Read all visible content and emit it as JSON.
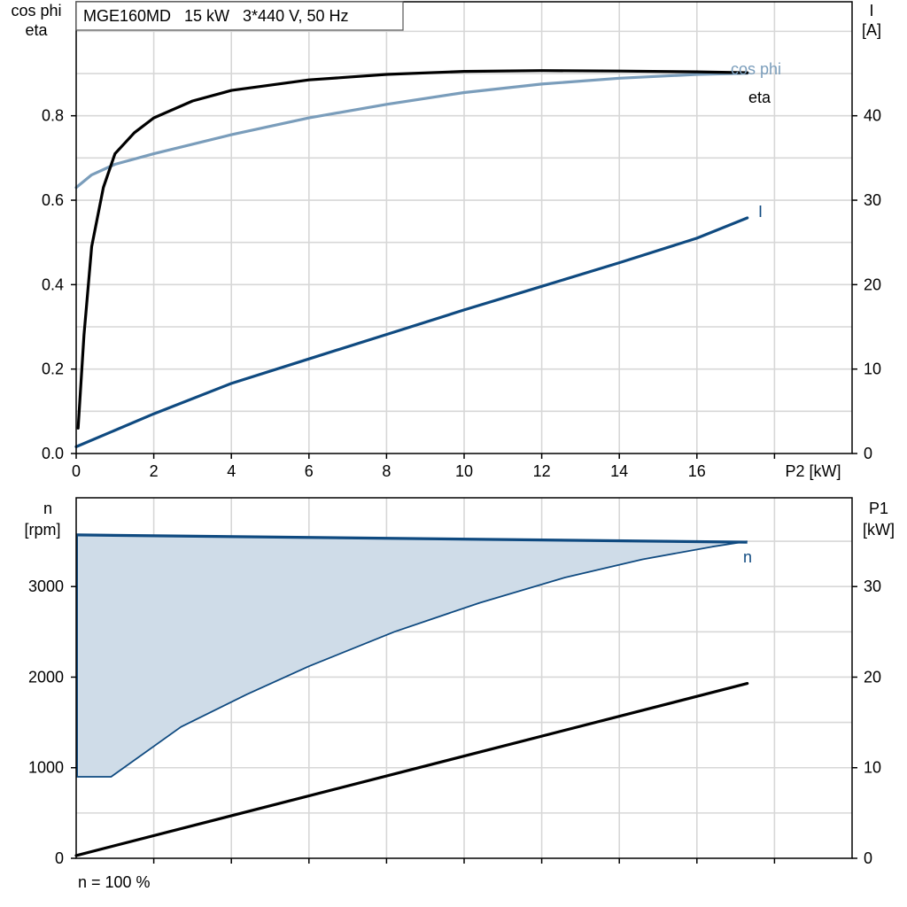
{
  "colors": {
    "eta": "#000000",
    "cos_phi": "#7a9dbb",
    "current": "#0f4a80",
    "speed": "#0f4a80",
    "speed_fill": "#cfdce8",
    "p1": "#000000",
    "grid": "#d7d7d7"
  },
  "chart_data": [
    {
      "type": "line",
      "title": "MGE160MD   15 kW   3*440 V, 50 Hz",
      "xlabel": "P2 [kW]",
      "xlim": [
        0,
        20
      ],
      "x_ticks": [
        0,
        2,
        4,
        6,
        8,
        10,
        12,
        14,
        16
      ],
      "ylabel_left": [
        "cos phi",
        "eta"
      ],
      "ylim_left": [
        0,
        1.07
      ],
      "y_ticks_left": [
        "0.0",
        "0.2",
        "0.4",
        "0.6",
        "0.8"
      ],
      "y_tick_values_left": [
        0,
        0.2,
        0.4,
        0.6,
        0.8
      ],
      "ylabel_right": [
        "I",
        "[A]"
      ],
      "ylim_right": [
        0,
        53.5
      ],
      "y_ticks_right": [
        "0",
        "10",
        "20",
        "30",
        "40"
      ],
      "y_tick_values_right": [
        0,
        10,
        20,
        30,
        40
      ],
      "grid": true,
      "series": [
        {
          "name": "eta",
          "axis": "left",
          "label": "eta",
          "x": [
            0.05,
            0.2,
            0.4,
            0.7,
            1.0,
            1.5,
            2.0,
            3.0,
            4.0,
            6.0,
            8.0,
            10.0,
            12.0,
            14.0,
            16.0,
            17.3
          ],
          "y": [
            0.06,
            0.28,
            0.49,
            0.63,
            0.71,
            0.76,
            0.795,
            0.835,
            0.86,
            0.885,
            0.898,
            0.905,
            0.907,
            0.906,
            0.904,
            0.902
          ]
        },
        {
          "name": "cos phi",
          "axis": "left",
          "label": "cos phi",
          "x": [
            0,
            0.4,
            1.0,
            2.0,
            4.0,
            6.0,
            8.0,
            10.0,
            12.0,
            14.0,
            16.0,
            17.3
          ],
          "y": [
            0.63,
            0.66,
            0.685,
            0.71,
            0.755,
            0.795,
            0.827,
            0.855,
            0.875,
            0.889,
            0.898,
            0.901
          ]
        },
        {
          "name": "I",
          "axis": "right",
          "label": "I",
          "x": [
            0,
            2,
            4,
            6,
            8,
            10,
            12,
            14,
            16,
            17.3
          ],
          "y": [
            0.8,
            4.7,
            8.3,
            11.2,
            14.1,
            17.0,
            19.8,
            22.6,
            25.5,
            27.9
          ]
        }
      ]
    },
    {
      "type": "area",
      "xlim": [
        0,
        20
      ],
      "ylabel_left": [
        "n",
        "[rpm]"
      ],
      "ylim_left": [
        0,
        3980
      ],
      "y_ticks_left": [
        "0",
        "1000",
        "2000",
        "3000"
      ],
      "y_tick_values_left": [
        0,
        1000,
        2000,
        3000
      ],
      "ylabel_right": [
        "P1",
        "[kW]"
      ],
      "ylim_right": [
        0,
        39.8
      ],
      "y_ticks_right": [
        "0",
        "10",
        "20",
        "30"
      ],
      "y_tick_values_right": [
        0,
        10,
        20,
        30
      ],
      "grid": true,
      "series": [
        {
          "name": "n",
          "axis": "left",
          "label": "n",
          "role": "max",
          "x": [
            0,
            17.3
          ],
          "y": [
            3570,
            3490
          ]
        },
        {
          "name": "n",
          "axis": "left",
          "role": "min",
          "x": [
            0,
            0.9,
            2.7,
            4.4,
            6.0,
            8.2,
            10.4,
            12.6,
            14.6,
            16.4,
            17.3
          ],
          "y": [
            900,
            900,
            1450,
            1810,
            2120,
            2500,
            2820,
            3100,
            3300,
            3440,
            3500
          ]
        },
        {
          "name": "P1",
          "axis": "right",
          "x": [
            0,
            17.3
          ],
          "y": [
            0.3,
            19.3
          ]
        }
      ],
      "footnote": "n = 100 %"
    }
  ]
}
